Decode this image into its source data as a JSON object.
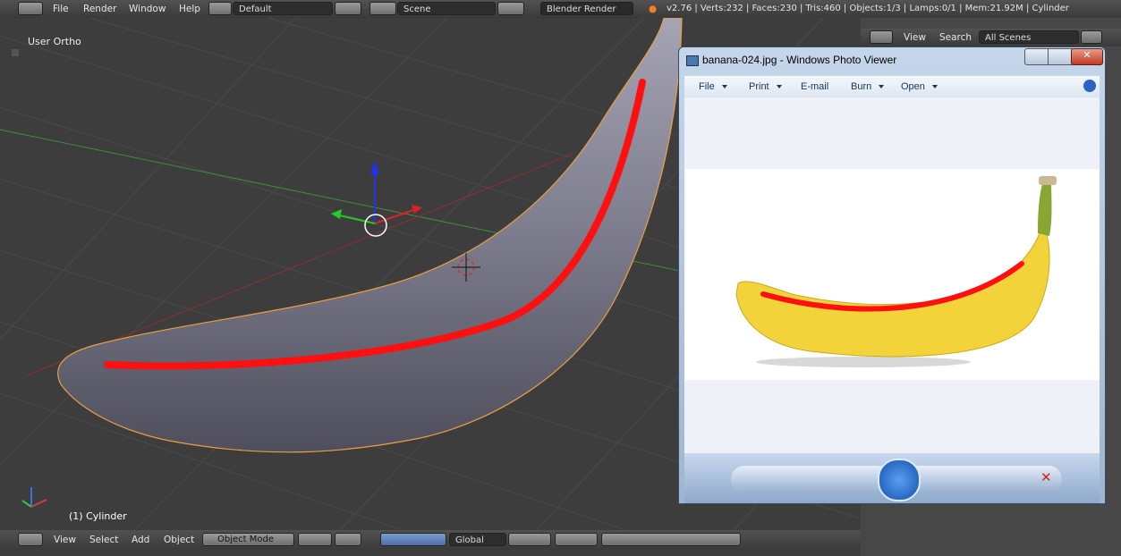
{
  "top_bar": {
    "menus": [
      "File",
      "Render",
      "Window",
      "Help"
    ],
    "layout": "Default",
    "scene": "Scene",
    "engine": "Blender Render",
    "stats": "v2.76 | Verts:232 | Faces:230 | Tris:460 | Objects:1/3 | Lamps:0/1 | Mem:21.92M | Cylinder"
  },
  "viewport": {
    "view_name": "User Ortho",
    "object_label": "(1) Cylinder"
  },
  "outliner": {
    "menus": [
      "View",
      "Search"
    ],
    "filter": "All Scenes"
  },
  "photo_viewer": {
    "title": "banana-024.jpg - Windows Photo Viewer",
    "menu": [
      "File",
      "Print",
      "E-mail",
      "Burn",
      "Open"
    ]
  },
  "bottom_bar": {
    "menus": [
      "View",
      "Select",
      "Add",
      "Object"
    ],
    "mode": "Object Mode",
    "orientation": "Global"
  }
}
